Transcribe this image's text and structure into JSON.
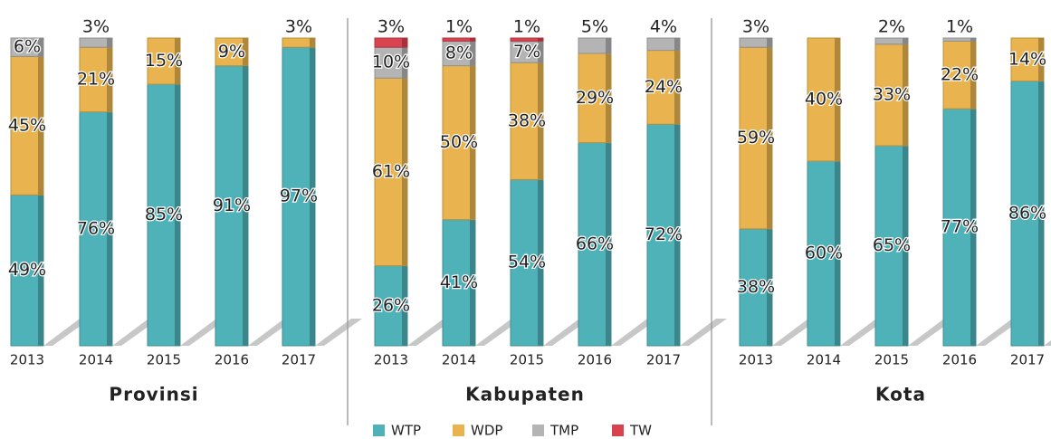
{
  "legend": [
    {
      "name": "WTP",
      "color": "#4fb2b8"
    },
    {
      "name": "WDP",
      "color": "#e9b44f"
    },
    {
      "name": "TMP",
      "color": "#b4b4b4"
    },
    {
      "name": "TW",
      "color": "#d9424f"
    }
  ],
  "chart_data": [
    {
      "type": "bar",
      "title": "Provinsi",
      "categories": [
        "2013",
        "2014",
        "2015",
        "2016",
        "2017"
      ],
      "ylim": [
        0,
        100
      ],
      "series": [
        {
          "values": [
            49,
            76,
            85,
            91,
            97
          ],
          "value_labels": [
            "49%",
            "76%",
            "85%",
            "91%",
            "97%"
          ]
        },
        {
          "values": [
            45,
            21,
            15,
            9,
            3
          ],
          "value_labels": [
            "45%",
            "21%",
            "15%",
            "9%",
            "3%"
          ]
        },
        {
          "values": [
            6,
            3,
            null,
            null,
            null
          ],
          "value_labels": [
            "6%",
            "3%",
            null,
            null,
            null
          ]
        },
        {
          "values": [
            null,
            null,
            null,
            null,
            null
          ],
          "value_labels": [
            null,
            null,
            null,
            null,
            null
          ]
        }
      ]
    },
    {
      "type": "bar",
      "title": "Kabupaten",
      "categories": [
        "2013",
        "2014",
        "2015",
        "2016",
        "2017"
      ],
      "ylim": [
        0,
        100
      ],
      "series": [
        {
          "values": [
            26,
            41,
            54,
            66,
            72
          ],
          "value_labels": [
            "26%",
            "41%",
            "54%",
            "66%",
            "72%"
          ]
        },
        {
          "values": [
            61,
            50,
            38,
            29,
            24
          ],
          "value_labels": [
            "61%",
            "50%",
            "38%",
            "29%",
            "24%"
          ]
        },
        {
          "values": [
            10,
            8,
            7,
            5,
            4
          ],
          "value_labels": [
            "10%",
            "8%",
            "7%",
            "5%",
            "4%"
          ]
        },
        {
          "values": [
            3,
            1,
            1,
            null,
            null
          ],
          "value_labels": [
            "3%",
            "1%",
            "1%",
            null,
            null
          ]
        }
      ]
    },
    {
      "type": "bar",
      "title": "Kota",
      "categories": [
        "2013",
        "2014",
        "2015",
        "2016",
        "2017"
      ],
      "ylim": [
        0,
        100
      ],
      "series": [
        {
          "values": [
            38,
            60,
            65,
            77,
            86
          ],
          "value_labels": [
            "38%",
            "60%",
            "65%",
            "77%",
            "86%"
          ]
        },
        {
          "values": [
            59,
            40,
            33,
            22,
            14
          ],
          "value_labels": [
            "59%",
            "40%",
            "33%",
            "22%",
            "14%"
          ]
        },
        {
          "values": [
            3,
            null,
            2,
            1,
            null
          ],
          "value_labels": [
            "3%",
            null,
            "2%",
            "1%",
            null
          ]
        },
        {
          "values": [
            null,
            null,
            null,
            null,
            null
          ],
          "value_labels": [
            null,
            null,
            null,
            null,
            null
          ]
        }
      ]
    }
  ]
}
